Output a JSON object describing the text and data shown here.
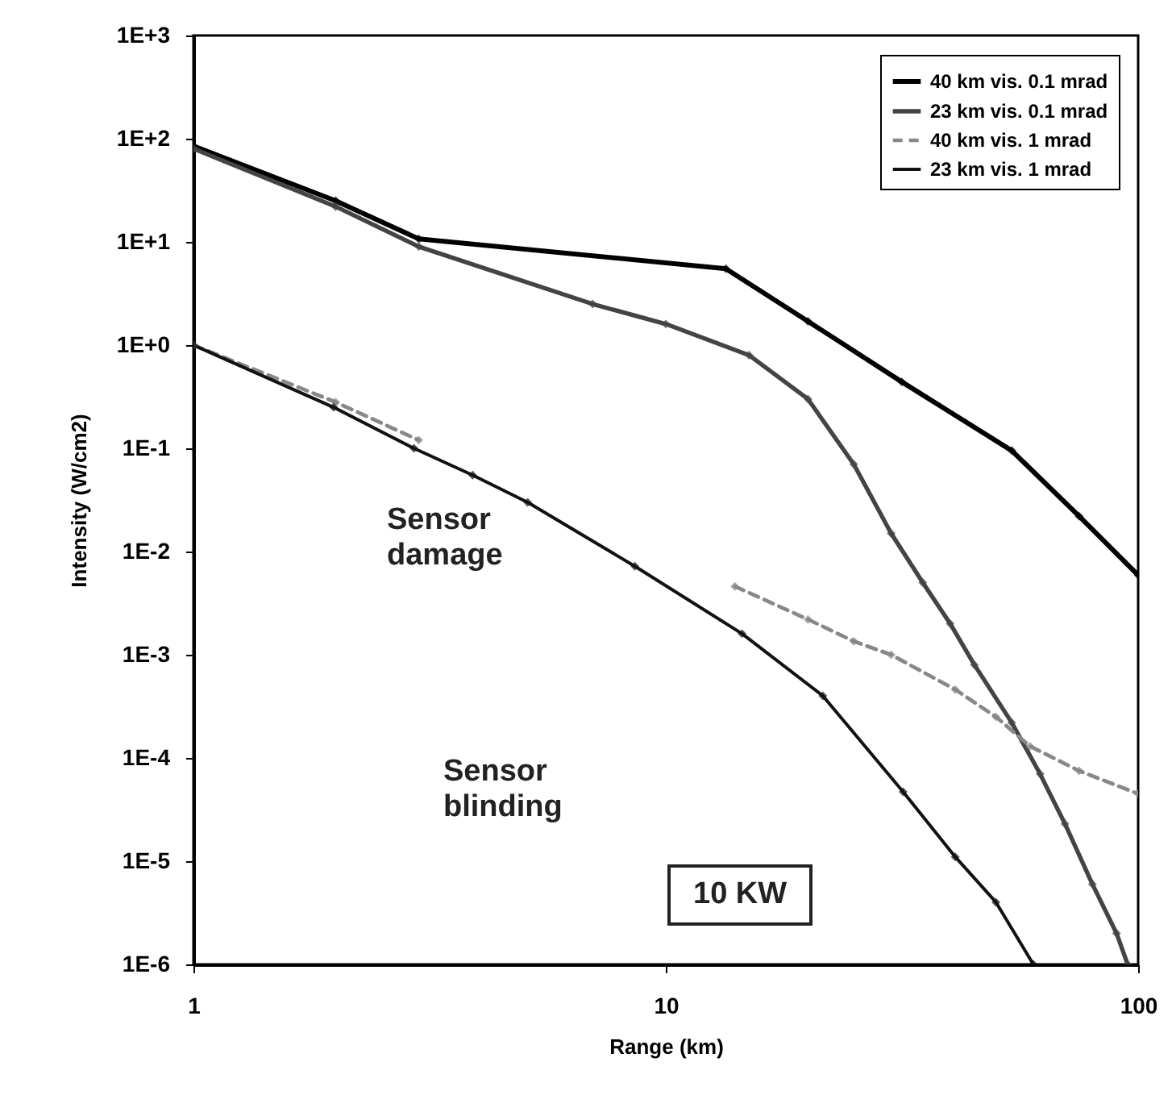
{
  "chart_data": {
    "type": "line",
    "xlabel": "Range (km)",
    "ylabel": "Intensity (W/cm2)",
    "log": "xy",
    "xlim": [
      1,
      100
    ],
    "xticks": [
      1,
      10,
      100
    ],
    "ylim": [
      1e-06,
      1000
    ],
    "yticks": [
      {
        "value": 1000,
        "label": "1E+3"
      },
      {
        "value": 100,
        "label": "1E+2"
      },
      {
        "value": 10,
        "label": "1E+1"
      },
      {
        "value": 1,
        "label": "1E+0"
      },
      {
        "value": 0.1,
        "label": "1E-1"
      },
      {
        "value": 0.01,
        "label": "1E-2"
      },
      {
        "value": 0.001,
        "label": "1E-3"
      },
      {
        "value": 0.0001,
        "label": "1E-4"
      },
      {
        "value": 1e-05,
        "label": "1E-5"
      },
      {
        "value": 1e-06,
        "label": "1E-6"
      }
    ],
    "grid": false,
    "legend": "top right",
    "marker": "diamond",
    "series": [
      {
        "name": "40 km vis. 0.1 mrad",
        "color": "#000000",
        "line_style": "solid",
        "x": [
          1,
          2,
          3,
          13.4,
          20,
          31.6,
          54,
          75,
          100
        ],
        "values": [
          85,
          25,
          10.7,
          5.5,
          1.7,
          0.44,
          0.095,
          0.022,
          0.0059
        ]
      },
      {
        "name": "23 km vis. 0.1 mrad",
        "color": "#444444",
        "line_style": "solid",
        "x": [
          1,
          2,
          3,
          7,
          10,
          15,
          20,
          25,
          30,
          35,
          40,
          45,
          54,
          62,
          70,
          80,
          90,
          95
        ],
        "values": [
          80,
          22,
          9,
          2.5,
          1.6,
          0.8,
          0.3,
          0.07,
          0.015,
          0.005,
          0.002,
          0.0008,
          0.00022,
          7e-05,
          2.3e-05,
          6e-06,
          2e-06,
          1e-06
        ]
      },
      {
        "name": "40 km vis. 1 mrad",
        "color": "#888888",
        "line_style": "dashed",
        "x": [
          1,
          2,
          3,
          8,
          14,
          20,
          25,
          30,
          41,
          50,
          59,
          75,
          100
        ],
        "values": [
          1,
          0.28,
          0.12,
          null,
          0.0046,
          0.0022,
          0.00135,
          0.001,
          0.00046,
          0.00025,
          0.00013,
          7.5e-05,
          4.5e-05
        ]
      },
      {
        "name": "23 km vis. 1 mrad",
        "color": "#111111",
        "line_style": "solid",
        "x": [
          1,
          1.98,
          2.93,
          3.9,
          5.1,
          8.6,
          14.5,
          21.5,
          31.8,
          41,
          50,
          60
        ],
        "values": [
          1,
          0.25,
          0.1,
          0.055,
          0.03,
          0.0072,
          0.0016,
          0.0004,
          4.7e-05,
          1.1e-05,
          4e-06,
          1e-06
        ]
      }
    ],
    "annotations": [
      "Sensor damage",
      "Sensor blinding",
      "10 KW"
    ]
  }
}
